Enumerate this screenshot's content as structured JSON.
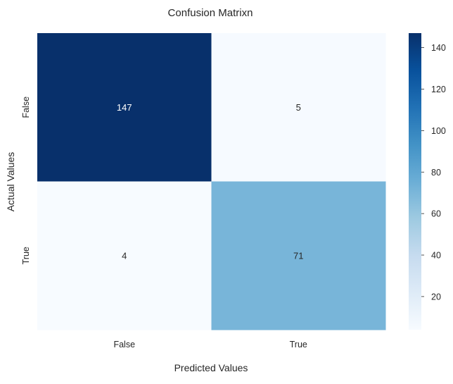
{
  "chart_data": {
    "type": "heatmap",
    "title": "Confusion Matrixn",
    "xlabel": "Predicted Values",
    "ylabel": "Actual Values",
    "x_categories": [
      "False",
      "True"
    ],
    "y_categories": [
      "False",
      "True"
    ],
    "values": [
      [
        147,
        5
      ],
      [
        4,
        71
      ]
    ],
    "colormap": "Blues",
    "colorbar": {
      "range": [
        4,
        147
      ],
      "ticks": [
        20,
        40,
        60,
        80,
        100,
        120,
        140
      ]
    },
    "grid": false
  }
}
